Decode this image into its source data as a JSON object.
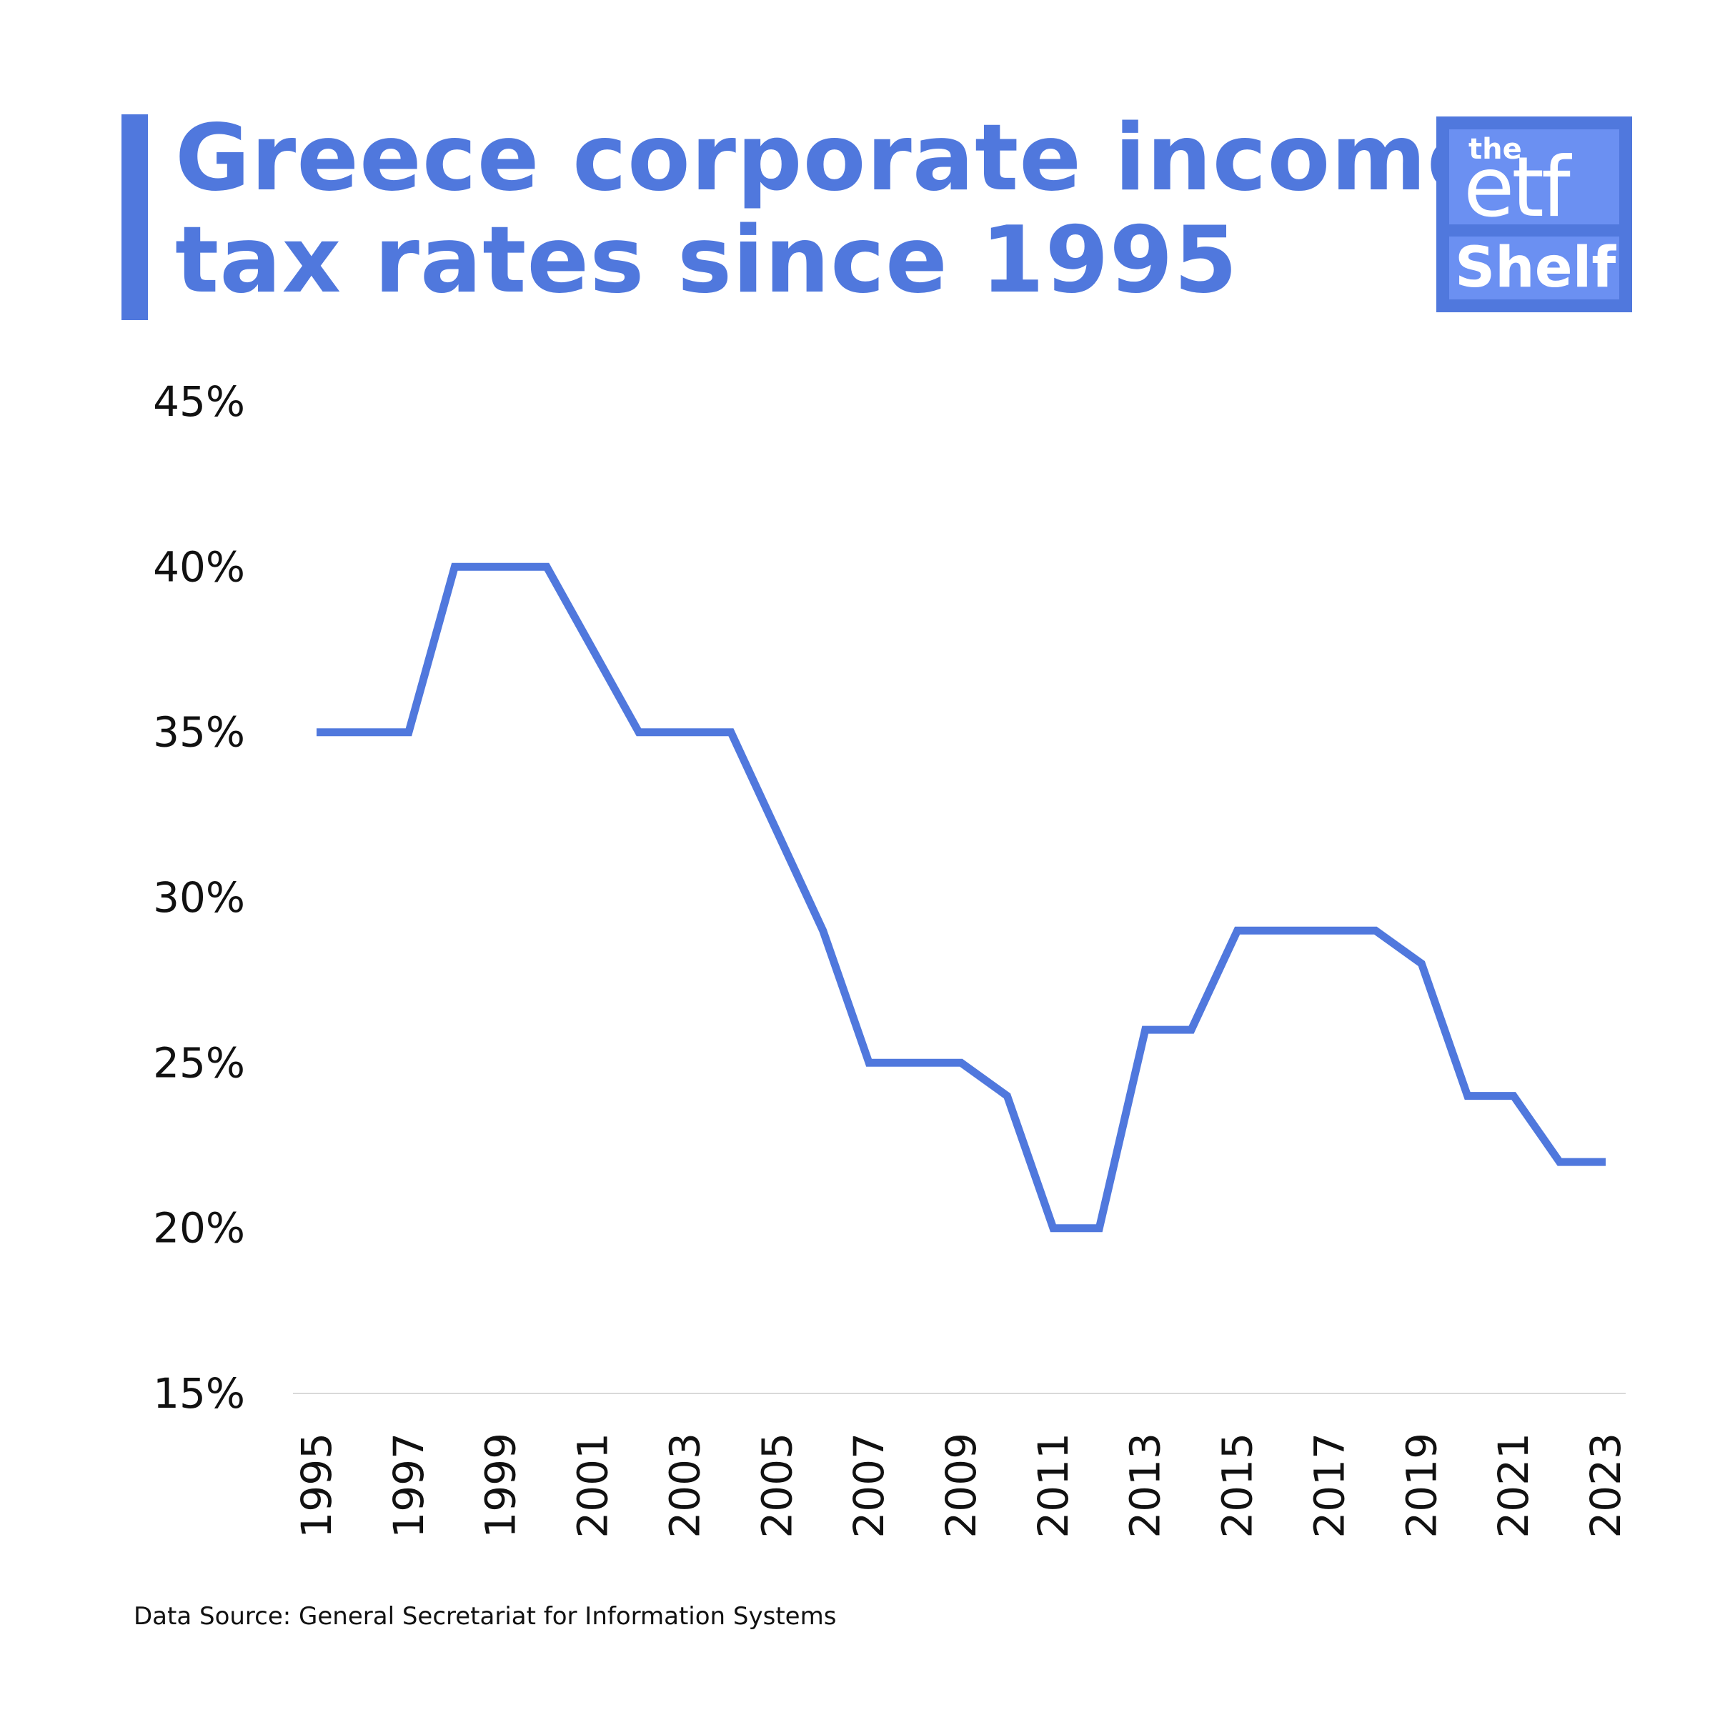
{
  "header": {
    "title_line1": "Greece corporate income",
    "title_line2": "tax rates since 1995",
    "accent_color": "#5078dd"
  },
  "logo": {
    "the": "the",
    "etf": "etf",
    "shelf": "Shelf"
  },
  "footer": {
    "source": "Data Source: General Secretariat for Information Systems"
  },
  "chart_data": {
    "type": "line",
    "title": "Greece corporate income tax rates since 1995",
    "x": [
      1995,
      1996,
      1997,
      1998,
      1999,
      2000,
      2001,
      2002,
      2003,
      2004,
      2005,
      2006,
      2007,
      2008,
      2009,
      2010,
      2011,
      2012,
      2013,
      2014,
      2015,
      2016,
      2017,
      2018,
      2019,
      2020,
      2021,
      2022,
      2023
    ],
    "series": [
      {
        "values": [
          35,
          35,
          35,
          40,
          40,
          40,
          37.5,
          35,
          35,
          35,
          32,
          29,
          25,
          25,
          25,
          24,
          20,
          20,
          26,
          26,
          29,
          29,
          29,
          29,
          28,
          24,
          24,
          22,
          22
        ],
        "color": "#5078dd"
      }
    ],
    "x_tick_labels": [
      "1995",
      "1997",
      "1999",
      "2001",
      "2003",
      "2005",
      "2007",
      "2009",
      "2011",
      "2013",
      "2015",
      "2017",
      "2019",
      "2021",
      "2023"
    ],
    "y_tick_labels": [
      "15%",
      "20%",
      "25%",
      "30%",
      "35%",
      "40%",
      "45%"
    ],
    "y_ticks": [
      15,
      20,
      25,
      30,
      35,
      40,
      45
    ],
    "ylim": [
      15,
      45
    ],
    "xlim": [
      1995,
      2023
    ],
    "grid": false,
    "legend": "none"
  }
}
